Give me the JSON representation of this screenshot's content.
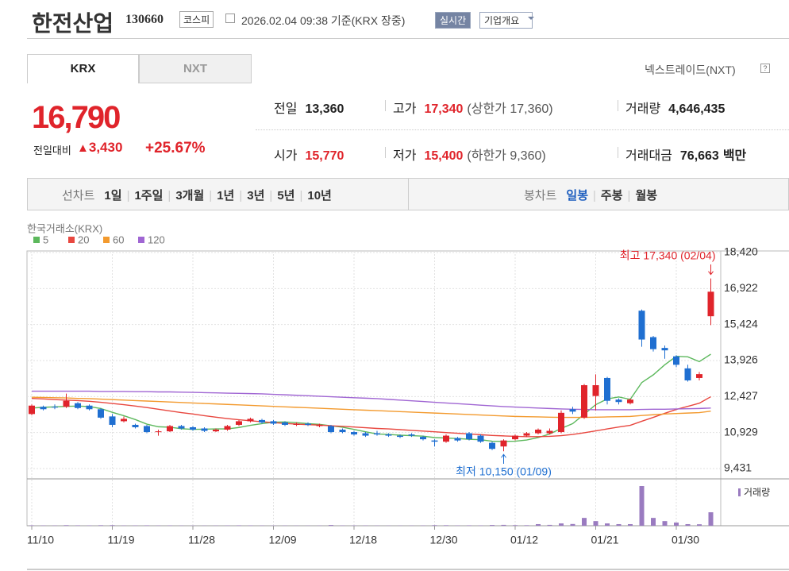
{
  "header": {
    "title": "한전산업",
    "code": "130660",
    "market": "코스피",
    "timestamp": "2026.02.04 09:38 기준(KRX 장중)",
    "realtime_button": "실시간",
    "company_button": "기업개요"
  },
  "tabs": [
    "KRX",
    "NXT"
  ],
  "nxt_link": "넥스트레이드(NXT)",
  "quote": {
    "price": "16,790",
    "change_label": "전일대비",
    "change": "3,430",
    "change_rate": "+25.67%"
  },
  "stats": [
    [
      {
        "label": "전일",
        "value": "13,360"
      },
      {
        "label": "고가",
        "value": "17,340",
        "extra": "(상한가 17,360)"
      },
      {
        "label": "거래량",
        "value": "4,646,435"
      }
    ],
    [
      {
        "label": "시가",
        "value": "15,770"
      },
      {
        "label": "저가",
        "value": "15,400",
        "extra": "(하한가 9,360)"
      },
      {
        "label": "거래대금",
        "value": "76,663",
        "extra": "백만"
      }
    ]
  ],
  "period": {
    "line_chart": {
      "label": "선차트",
      "options": [
        "1일",
        "1주일",
        "3개월",
        "1년",
        "3년",
        "5년",
        "10년"
      ]
    },
    "candle_chart": {
      "label": "봉차트",
      "options": [
        "일봉",
        "주봉",
        "월봉"
      ]
    }
  },
  "chart_data": {
    "type": "candlestick",
    "source": "한국거래소(KRX)",
    "high_label": "최고 17,340 (02/04)",
    "low_label": "최저 10,150 (01/09)",
    "up_color": "#e0242b",
    "down_color": "#1f6fd1",
    "grid": true,
    "categories": [
      "11/10",
      null,
      null,
      null,
      null,
      null,
      null,
      "11/19",
      null,
      null,
      null,
      null,
      null,
      null,
      "11/28",
      null,
      null,
      null,
      null,
      null,
      null,
      "12/09",
      null,
      null,
      null,
      null,
      null,
      null,
      "12/18",
      null,
      null,
      null,
      null,
      null,
      null,
      "12/30",
      null,
      null,
      null,
      null,
      null,
      null,
      "01/12",
      null,
      null,
      null,
      null,
      null,
      null,
      "01/21",
      null,
      null,
      null,
      null,
      null,
      null,
      "01/30",
      null,
      null,
      null
    ],
    "ylim": [
      9431,
      18420
    ],
    "yticks": [
      {
        "value": 9431,
        "label": "9,431"
      },
      {
        "value": 10929,
        "label": "10,929"
      },
      {
        "value": 12427,
        "label": "12,427"
      },
      {
        "value": 13926,
        "label": "13,926"
      },
      {
        "value": 15424,
        "label": "15,424"
      },
      {
        "value": 16922,
        "label": "16,922"
      },
      {
        "value": 18420,
        "label": "18,420"
      }
    ],
    "open": [
      11700,
      12000,
      12000,
      12000,
      12150,
      12050,
      11900,
      11600,
      11400,
      11250,
      11200,
      10950,
      10980,
      11200,
      11150,
      11100,
      10980,
      11050,
      11250,
      11400,
      11450,
      11400,
      11350,
      11250,
      11300,
      11200,
      11200,
      11050,
      10950,
      10900,
      10900,
      10850,
      10800,
      10850,
      10750,
      10600,
      10550,
      10700,
      10900,
      10800,
      10500,
      10350,
      10650,
      10800,
      10900,
      10900,
      10950,
      11900,
      11550,
      12450,
      13200,
      12300,
      12150,
      16000,
      14900,
      14450,
      14100,
      13600,
      13200,
      15770
    ],
    "high": [
      12100,
      12050,
      12100,
      12550,
      12200,
      12100,
      11950,
      11700,
      11600,
      11300,
      11250,
      11050,
      11250,
      11250,
      11200,
      11150,
      11100,
      11250,
      11450,
      11550,
      11500,
      11450,
      11400,
      11350,
      11350,
      11300,
      11250,
      11100,
      11000,
      10950,
      11000,
      10900,
      10850,
      10900,
      10800,
      10650,
      10850,
      10750,
      10950,
      10850,
      10550,
      10650,
      10850,
      10950,
      11100,
      11100,
      11850,
      12000,
      12950,
      13350,
      13250,
      12350,
      12350,
      16050,
      14950,
      14550,
      14150,
      13750,
      13450,
      17340
    ],
    "low": [
      11650,
      11850,
      11900,
      11950,
      11900,
      11850,
      11500,
      11150,
      11350,
      11100,
      10900,
      10800,
      10950,
      11050,
      11000,
      10950,
      10950,
      11000,
      11200,
      11350,
      11300,
      11250,
      11200,
      11200,
      11200,
      11150,
      10900,
      10900,
      10800,
      10750,
      10800,
      10750,
      10700,
      10750,
      10600,
      10350,
      10500,
      10550,
      10600,
      10500,
      10200,
      10150,
      10600,
      10750,
      10850,
      10850,
      10900,
      11700,
      11500,
      11850,
      12100,
      12100,
      12100,
      14500,
      14300,
      14000,
      13650,
      13050,
      13100,
      15400
    ],
    "close": [
      12050,
      11900,
      11980,
      12250,
      11950,
      11900,
      11550,
      11250,
      11500,
      11150,
      10950,
      10980,
      11200,
      11100,
      11050,
      11000,
      11050,
      11200,
      11400,
      11500,
      11350,
      11300,
      11250,
      11300,
      11250,
      11250,
      10950,
      10950,
      10850,
      10800,
      10850,
      10800,
      10750,
      10800,
      10650,
      10550,
      10800,
      10600,
      10650,
      10550,
      10250,
      10600,
      10800,
      10900,
      11050,
      11000,
      11750,
      11800,
      12900,
      12900,
      12250,
      12200,
      12300,
      14800,
      14400,
      14350,
      13750,
      13100,
      13360,
      16790
    ],
    "series": [
      {
        "name": "5",
        "color": "#5cb85c",
        "values": [
          11950,
          11980,
          12000,
          12020,
          12030,
          12010,
          11930,
          11770,
          11630,
          11470,
          11280,
          11170,
          11150,
          11090,
          11060,
          11070,
          11080,
          11080,
          11140,
          11230,
          11300,
          11360,
          11370,
          11340,
          11300,
          11270,
          11210,
          11150,
          11060,
          10960,
          10870,
          10850,
          10820,
          10800,
          10780,
          10720,
          10700,
          10680,
          10650,
          10630,
          10570,
          10560,
          10570,
          10620,
          10720,
          10870,
          11100,
          11300,
          11690,
          12090,
          12330,
          12410,
          12310,
          13010,
          13330,
          13750,
          14100,
          14080,
          13880,
          14190
        ]
      },
      {
        "name": "20",
        "color": "#e8473f",
        "values": [
          12350,
          12330,
          12300,
          12280,
          12260,
          12230,
          12190,
          12140,
          12090,
          12030,
          11970,
          11900,
          11830,
          11760,
          11700,
          11630,
          11570,
          11510,
          11460,
          11420,
          11380,
          11340,
          11310,
          11280,
          11260,
          11240,
          11210,
          11190,
          11160,
          11130,
          11100,
          11080,
          11050,
          11020,
          10990,
          10960,
          10930,
          10900,
          10870,
          10840,
          10810,
          10790,
          10770,
          10760,
          10760,
          10770,
          10800,
          10850,
          10920,
          11000,
          11080,
          11160,
          11230,
          11400,
          11560,
          11730,
          11890,
          12020,
          12150,
          12420
        ]
      },
      {
        "name": "60",
        "color": "#f39a2e",
        "values": [
          12400,
          12390,
          12380,
          12370,
          12350,
          12340,
          12320,
          12300,
          12280,
          12260,
          12240,
          12220,
          12200,
          12180,
          12160,
          12140,
          12120,
          12100,
          12080,
          12060,
          12040,
          12020,
          12000,
          11980,
          11960,
          11940,
          11920,
          11900,
          11880,
          11860,
          11840,
          11820,
          11800,
          11780,
          11760,
          11740,
          11720,
          11700,
          11680,
          11660,
          11640,
          11620,
          11600,
          11590,
          11580,
          11570,
          11560,
          11560,
          11560,
          11570,
          11580,
          11590,
          11600,
          11640,
          11670,
          11700,
          11720,
          11740,
          11760,
          11820
        ]
      },
      {
        "name": "120",
        "color": "#a066d3",
        "values": [
          12650,
          12650,
          12650,
          12650,
          12650,
          12650,
          12640,
          12640,
          12640,
          12630,
          12630,
          12620,
          12620,
          12610,
          12600,
          12590,
          12580,
          12570,
          12560,
          12550,
          12540,
          12520,
          12500,
          12480,
          12460,
          12440,
          12420,
          12400,
          12380,
          12360,
          12340,
          12310,
          12280,
          12250,
          12220,
          12190,
          12160,
          12130,
          12100,
          12070,
          12040,
          12010,
          11990,
          11970,
          11950,
          11930,
          11910,
          11900,
          11890,
          11880,
          11880,
          11880,
          11880,
          11890,
          11900,
          11900,
          11910,
          11920,
          11930,
          11950
        ]
      }
    ],
    "volume": {
      "name": "거래량",
      "color": "#9a7bc0",
      "values": [
        150000,
        120000,
        100000,
        200000,
        150000,
        130000,
        180000,
        200000,
        100000,
        120000,
        150000,
        100000,
        120000,
        90000,
        80000,
        80000,
        90000,
        110000,
        150000,
        130000,
        100000,
        90000,
        90000,
        80000,
        80000,
        90000,
        250000,
        120000,
        110000,
        100000,
        90000,
        80000,
        80000,
        90000,
        100000,
        200000,
        180000,
        120000,
        150000,
        130000,
        250000,
        300000,
        200000,
        180000,
        550000,
        300000,
        800000,
        600000,
        2700000,
        1600000,
        800000,
        550000,
        550000,
        13700000,
        2700000,
        1600000,
        1100000,
        550000,
        500000,
        4646435
      ]
    }
  }
}
